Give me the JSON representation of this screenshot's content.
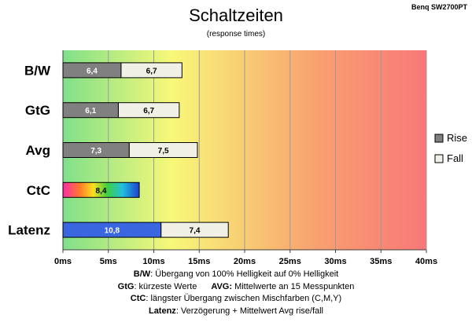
{
  "chart_data": {
    "type": "bar",
    "orientation": "horizontal",
    "stacked": true,
    "title": "Schaltzeiten",
    "subtitle": "(response times)",
    "model_label": "Benq SW2700PT",
    "categories": [
      "B/W",
      "GtG",
      "Avg",
      "CtC",
      "Latenz"
    ],
    "series": [
      {
        "name": "Rise",
        "color": "#808080",
        "values": [
          6.4,
          6.1,
          7.3,
          null,
          10.8
        ],
        "labels": [
          "6,4",
          "6,1",
          "7,3",
          "",
          "10,8"
        ]
      },
      {
        "name": "Fall",
        "color": "#f0f0e6",
        "values": [
          6.7,
          6.7,
          7.5,
          null,
          7.4
        ],
        "labels": [
          "6,7",
          "6,7",
          "7,5",
          "",
          "7,4"
        ]
      }
    ],
    "special_bars": {
      "CtC": {
        "value": 8.4,
        "label": "8,4",
        "fill": "rainbow"
      },
      "Latenz": {
        "rise_color": "#3a66e0"
      }
    },
    "x_ticks": [
      0,
      5,
      10,
      15,
      20,
      25,
      30,
      35,
      40
    ],
    "x_tick_labels": [
      "0ms",
      "5ms",
      "10ms",
      "15ms",
      "20ms",
      "25ms",
      "30ms",
      "35ms",
      "40ms"
    ],
    "xlim": [
      0,
      40
    ],
    "grid": true,
    "background_gradient": [
      "#7fe08a",
      "#f8f878",
      "#f8a070",
      "#f87878"
    ],
    "legend_position": "right"
  },
  "notes": {
    "line1_key": "B/W",
    "line1_text": ":  Übergang von 100% Helligkeit auf 0% Helligkeit",
    "line2_key_a": "GtG",
    "line2_text_a": ": kürzeste  Werte",
    "line2_key_b": "AVG:",
    "line2_text_b": " Mittelwerte  an 15 Messpunkten",
    "line3_key": "CtC",
    "line3_text": ": längster Übergang  zwischen Mischfarben (C,M,Y)",
    "line4_key": "Latenz",
    "line4_text": ": Verzögerung  + Mittelwert Avg rise/fall"
  }
}
